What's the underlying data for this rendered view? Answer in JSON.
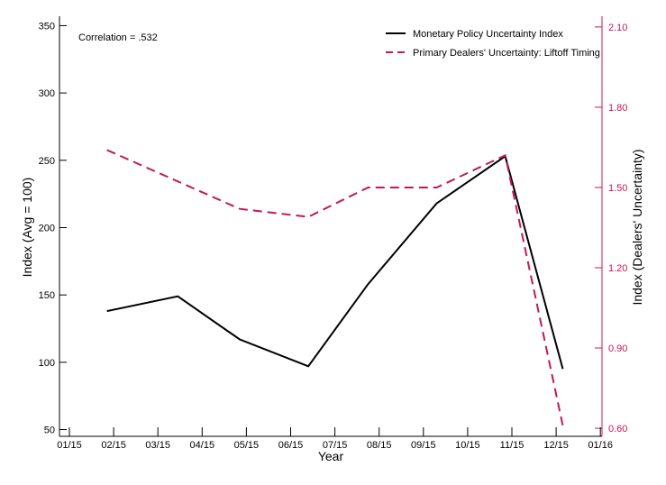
{
  "chart_data": {
    "type": "line",
    "xlabel": "Year",
    "ylabel_left": "Index (Avg = 100)",
    "ylabel_right": "Index (Dealers' Uncertainty)",
    "annotation": "Correlation = .532",
    "x_ticks": [
      "01/15",
      "02/15",
      "03/15",
      "04/15",
      "05/15",
      "06/15",
      "07/15",
      "08/15",
      "09/15",
      "10/15",
      "11/15",
      "12/15",
      "01/16"
    ],
    "y_left_ticks": [
      "50",
      "100",
      "150",
      "200",
      "250",
      "300",
      "350"
    ],
    "y_right_ticks": [
      "0.60",
      "0.90",
      "1.20",
      "1.50",
      "1.80",
      "2.10"
    ],
    "ylim_left": [
      45,
      357
    ],
    "ylim_right": [
      0.57,
      2.14
    ],
    "legend_position": "top-right",
    "series": [
      {
        "name": "Monetary Policy Uncertainty Index",
        "axis": "left",
        "color": "#000000",
        "dash": "solid",
        "points": [
          {
            "x": 0.85,
            "y": 138
          },
          {
            "x": 2.45,
            "y": 149
          },
          {
            "x": 3.85,
            "y": 117
          },
          {
            "x": 5.4,
            "y": 97
          },
          {
            "x": 6.75,
            "y": 158
          },
          {
            "x": 8.3,
            "y": 218
          },
          {
            "x": 9.85,
            "y": 253
          },
          {
            "x": 11.15,
            "y": 95
          }
        ]
      },
      {
        "name": "Primary Dealers' Uncertainty: Liftoff Timing",
        "axis": "right",
        "color": "#c2185b",
        "dash": "dashed",
        "points": [
          {
            "x": 0.85,
            "y": 1.64
          },
          {
            "x": 3.85,
            "y": 1.42
          },
          {
            "x": 5.4,
            "y": 1.39
          },
          {
            "x": 6.75,
            "y": 1.5
          },
          {
            "x": 8.3,
            "y": 1.5
          },
          {
            "x": 9.85,
            "y": 1.62
          },
          {
            "x": 11.15,
            "y": 0.61
          }
        ]
      }
    ]
  }
}
